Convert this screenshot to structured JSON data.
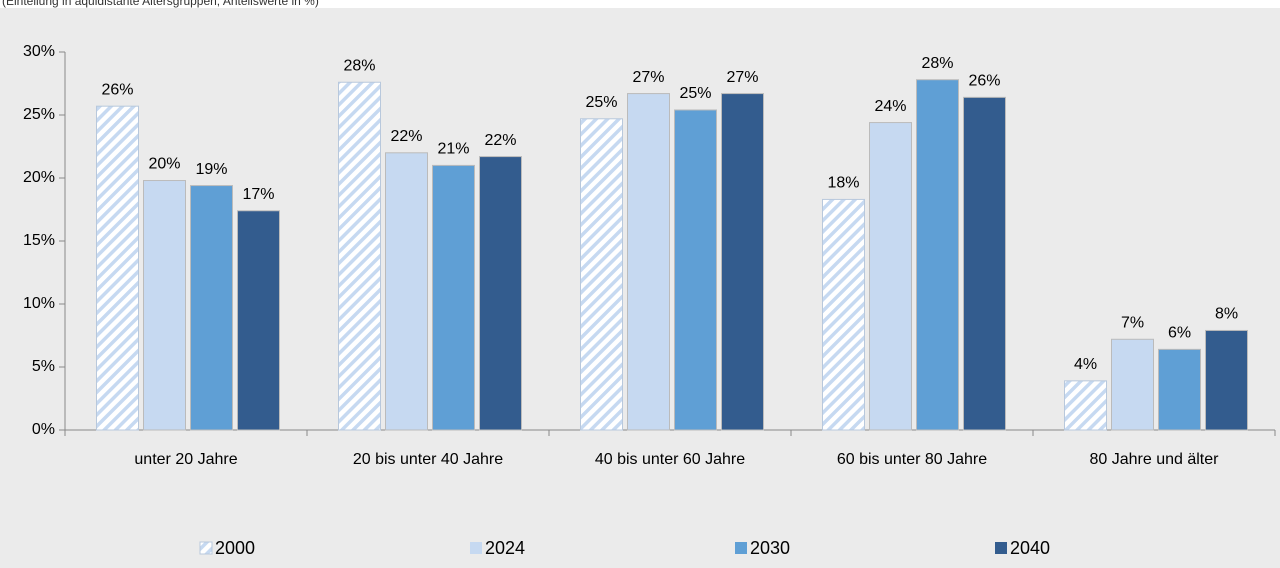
{
  "chart_data": {
    "type": "bar",
    "subtitle": "(Einteilung in äquidistante Altersgruppen, Anteilswerte in %)",
    "categories": [
      "unter 20 Jahre",
      "20 bis unter 40 Jahre",
      "40 bis unter 60 Jahre",
      "60 bis unter 80 Jahre",
      "80 Jahre und älter"
    ],
    "series": [
      {
        "name": "2000",
        "color": "#c6d9f1",
        "pattern": "hatch",
        "values": [
          25.7,
          27.6,
          24.7,
          18.3,
          3.9
        ],
        "value_labels": [
          "26%",
          "28%",
          "25%",
          "18%",
          "4%"
        ]
      },
      {
        "name": "2024",
        "color": "#c6d9f1",
        "values": [
          19.8,
          22.0,
          26.7,
          24.4,
          7.2
        ],
        "value_labels": [
          "20%",
          "22%",
          "27%",
          "24%",
          "7%"
        ]
      },
      {
        "name": "2030",
        "color": "#5f9fd5",
        "values": [
          19.4,
          21.0,
          25.4,
          27.8,
          6.4
        ],
        "value_labels": [
          "19%",
          "21%",
          "25%",
          "28%",
          "6%"
        ]
      },
      {
        "name": "2040",
        "color": "#335c8e",
        "values": [
          17.4,
          21.7,
          26.7,
          26.4,
          7.9
        ],
        "value_labels": [
          "17%",
          "22%",
          "27%",
          "26%",
          "8%"
        ]
      }
    ],
    "ylim": [
      0,
      30
    ],
    "yticks": [
      {
        "value": 0,
        "label": "0%"
      },
      {
        "value": 5,
        "label": "5%"
      },
      {
        "value": 10,
        "label": "10%"
      },
      {
        "value": 15,
        "label": "15%"
      },
      {
        "value": 20,
        "label": "20%"
      },
      {
        "value": 25,
        "label": "25%"
      },
      {
        "value": 30,
        "label": "30%"
      }
    ],
    "legend": "bottom"
  }
}
